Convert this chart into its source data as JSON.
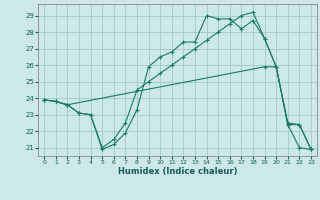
{
  "xlabel": "Humidex (Indice chaleur)",
  "background_color": "#cce8e8",
  "grid_color": "#aacccc",
  "line_color": "#1a7a6a",
  "xlim": [
    -0.5,
    23.5
  ],
  "ylim": [
    20.5,
    29.7
  ],
  "xticks": [
    0,
    1,
    2,
    3,
    4,
    5,
    6,
    7,
    8,
    9,
    10,
    11,
    12,
    13,
    14,
    15,
    16,
    17,
    18,
    19,
    20,
    21,
    22,
    23
  ],
  "yticks": [
    21,
    22,
    23,
    24,
    25,
    26,
    27,
    28,
    29
  ],
  "line1_x": [
    0,
    1,
    2,
    3,
    4,
    5,
    6,
    7,
    8,
    9,
    10,
    11,
    12,
    13,
    14,
    15,
    16,
    17,
    18,
    19,
    20,
    21,
    22,
    23
  ],
  "line1_y": [
    23.9,
    23.8,
    23.6,
    23.1,
    23.0,
    20.9,
    21.2,
    21.9,
    23.3,
    25.9,
    26.5,
    26.8,
    27.4,
    27.4,
    29.0,
    28.8,
    28.8,
    28.2,
    28.7,
    27.6,
    25.9,
    22.4,
    21.0,
    20.9
  ],
  "line2_x": [
    0,
    1,
    2,
    3,
    4,
    5,
    6,
    7,
    8,
    9,
    10,
    11,
    12,
    13,
    14,
    15,
    16,
    17,
    18,
    19,
    20,
    21,
    22,
    23
  ],
  "line2_y": [
    23.9,
    23.8,
    23.6,
    23.1,
    23.0,
    21.0,
    21.5,
    22.5,
    24.5,
    25.0,
    25.5,
    26.0,
    26.5,
    27.0,
    27.5,
    28.0,
    28.5,
    29.0,
    29.2,
    27.6,
    25.9,
    22.5,
    22.4,
    20.9
  ],
  "line3_x": [
    0,
    1,
    2,
    19,
    20,
    21,
    22,
    23
  ],
  "line3_y": [
    23.9,
    23.8,
    23.6,
    25.9,
    25.9,
    22.4,
    22.4,
    20.9
  ]
}
